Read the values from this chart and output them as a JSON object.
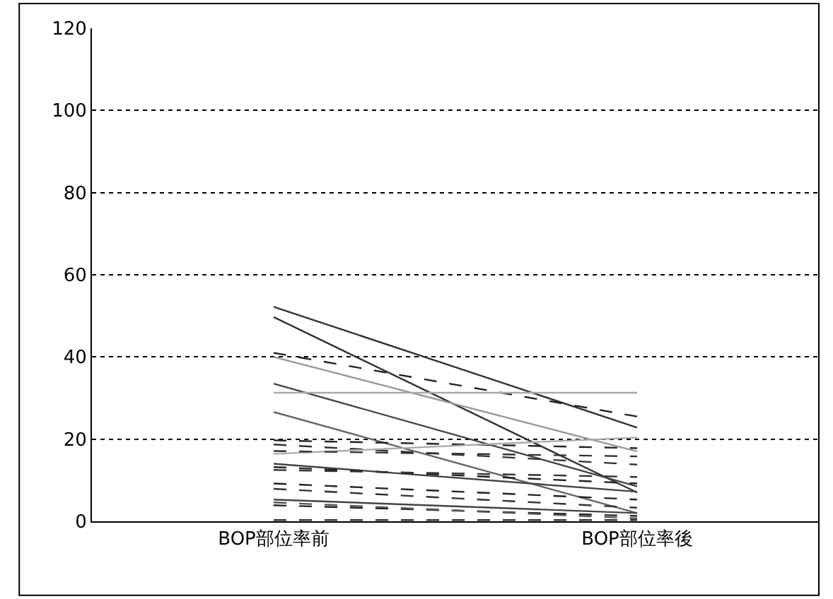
{
  "chart_data": {
    "type": "line",
    "categories": [
      "BOP部位率前",
      "BOP部位率後"
    ],
    "ylim": [
      0,
      120
    ],
    "yticks": [
      0,
      20,
      40,
      60,
      80,
      100,
      120
    ],
    "grid": "y",
    "marker": "none",
    "series": [
      {
        "color": "#333333",
        "line_style": "solid",
        "values": [
          52.2,
          22.8
        ]
      },
      {
        "color": "#333333",
        "line_style": "solid",
        "values": [
          49.7,
          7
        ]
      },
      {
        "color": "#222222",
        "line_style": "dashed",
        "values": [
          41,
          25.5
        ]
      },
      {
        "color": "#999999",
        "line_style": "solid",
        "values": [
          40,
          17
        ]
      },
      {
        "color": "#444444",
        "line_style": "solid",
        "values": [
          33.5,
          8.5
        ]
      },
      {
        "color": "#aaaaaa",
        "line_style": "solid",
        "values": [
          31.3,
          31.3
        ]
      },
      {
        "color": "#666666",
        "line_style": "solid",
        "values": [
          26.6,
          2
        ]
      },
      {
        "color": "#222222",
        "line_style": "dashed",
        "values": [
          19.7,
          17.8
        ]
      },
      {
        "color": "#333333",
        "line_style": "dashed",
        "values": [
          18.7,
          13.8
        ]
      },
      {
        "color": "#aaaaaa",
        "line_style": "solid",
        "values": [
          16.4,
          20.4
        ]
      },
      {
        "color": "#444444",
        "line_style": "solid",
        "values": [
          14,
          7.2
        ]
      },
      {
        "color": "#222222",
        "line_style": "dashed",
        "values": [
          13.2,
          9.2
        ]
      },
      {
        "color": "#333333",
        "line_style": "dashed",
        "values": [
          12.5,
          10.8
        ]
      },
      {
        "color": "#222222",
        "line_style": "dashed",
        "values": [
          9.2,
          5.3
        ]
      },
      {
        "color": "#333333",
        "line_style": "dashed",
        "values": [
          7.9,
          3.3
        ]
      },
      {
        "color": "#444444",
        "line_style": "solid",
        "values": [
          5.3,
          2
        ]
      },
      {
        "color": "#222222",
        "line_style": "dashed",
        "values": [
          3.9,
          1.3
        ]
      },
      {
        "color": "#333333",
        "line_style": "dashed",
        "values": [
          0.3,
          0.3
        ]
      },
      {
        "color": "#555555",
        "line_style": "dashed",
        "values": [
          4.6,
          0.7
        ]
      },
      {
        "color": "#333333",
        "line_style": "dashed",
        "values": [
          17.1,
          15.8
        ]
      }
    ]
  }
}
